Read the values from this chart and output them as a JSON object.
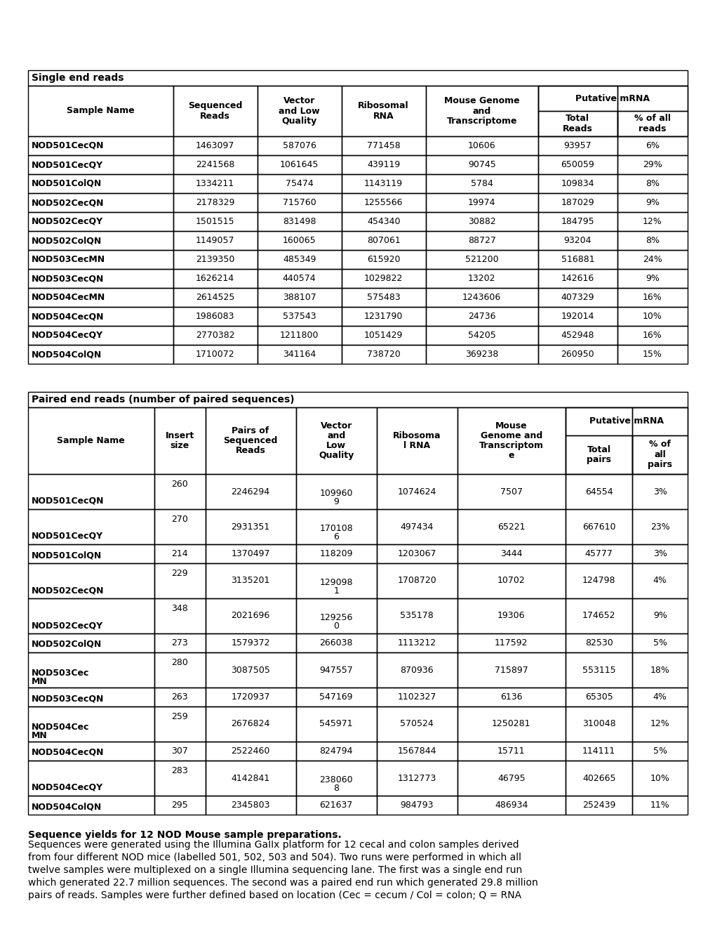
{
  "bg_color": "#ffffff",
  "text_color": "#000000",
  "border_color": "#000000",
  "table1_title": "Single end reads",
  "table1_data": [
    [
      "NOD501CecQN",
      "1463097",
      "587076",
      "771458",
      "10606",
      "93957",
      "6%"
    ],
    [
      "NOD501CecQY",
      "2241568",
      "1061645",
      "439119",
      "90745",
      "650059",
      "29%"
    ],
    [
      "NOD501ColQN",
      "1334211",
      "75474",
      "1143119",
      "5784",
      "109834",
      "8%"
    ],
    [
      "NOD502CecQN",
      "2178329",
      "715760",
      "1255566",
      "19974",
      "187029",
      "9%"
    ],
    [
      "NOD502CecQY",
      "1501515",
      "831498",
      "454340",
      "30882",
      "184795",
      "12%"
    ],
    [
      "NOD502ColQN",
      "1149057",
      "160065",
      "807061",
      "88727",
      "93204",
      "8%"
    ],
    [
      "NOD503CecMN",
      "2139350",
      "485349",
      "615920",
      "521200",
      "516881",
      "24%"
    ],
    [
      "NOD503CecQN",
      "1626214",
      "440574",
      "1029822",
      "13202",
      "142616",
      "9%"
    ],
    [
      "NOD504CecMN",
      "2614525",
      "388107",
      "575483",
      "1243606",
      "407329",
      "16%"
    ],
    [
      "NOD504CecQN",
      "1986083",
      "537543",
      "1231790",
      "24736",
      "192014",
      "10%"
    ],
    [
      "NOD504CecQY",
      "2770382",
      "1211800",
      "1051429",
      "54205",
      "452948",
      "16%"
    ],
    [
      "NOD504ColQN",
      "1710072",
      "341164",
      "738720",
      "369238",
      "260950",
      "15%"
    ]
  ],
  "table2_title": "Paired end reads (number of paired sequences)",
  "table2_data": [
    [
      "NOD501CecQN",
      "260",
      "2246294",
      "1099609",
      "1074624",
      "7507",
      "64554",
      "3%"
    ],
    [
      "NOD501CecQY",
      "270",
      "2931351",
      "1701086",
      "497434",
      "65221",
      "667610",
      "23%"
    ],
    [
      "NOD501ColQN",
      "214",
      "1370497",
      "118209",
      "1203067",
      "3444",
      "45777",
      "3%"
    ],
    [
      "NOD502CecQN",
      "229",
      "3135201",
      "1290981",
      "1708720",
      "10702",
      "124798",
      "4%"
    ],
    [
      "NOD502CecQY",
      "348",
      "2021696",
      "1292560",
      "535178",
      "19306",
      "174652",
      "9%"
    ],
    [
      "NOD502ColQN",
      "273",
      "1579372",
      "266038",
      "1113212",
      "117592",
      "82530",
      "5%"
    ],
    [
      "NOD503CecMN",
      "280",
      "3087505",
      "947557",
      "870936",
      "715897",
      "553115",
      "18%"
    ],
    [
      "NOD503CecQN",
      "263",
      "1720937",
      "547169",
      "1102327",
      "6136",
      "65305",
      "4%"
    ],
    [
      "NOD504CecMN",
      "259",
      "2676824",
      "545971",
      "570524",
      "1250281",
      "310048",
      "12%"
    ],
    [
      "NOD504CecQN",
      "307",
      "2522460",
      "824794",
      "1567844",
      "15711",
      "114111",
      "5%"
    ],
    [
      "NOD504CecQY",
      "283",
      "4142841",
      "2380608",
      "1312773",
      "46795",
      "402665",
      "10%"
    ],
    [
      "NOD504ColQN",
      "295",
      "2345803",
      "621637",
      "984793",
      "486934",
      "252439",
      "11%"
    ]
  ],
  "caption_bold": "Sequence yields for 12 NOD Mouse sample preparations.",
  "caption_lines": [
    "Sequences were generated using the Illumina GaIIx platform for 12 cecal and colon samples derived",
    "from four different NOD mice (labelled 501, 502, 503 and 504). Two runs were performed in which all",
    "twelve samples were multiplexed on a single Illumina sequencing lane. The first was a single end run",
    "which generated 22.7 million sequences. The second was a paired end run which generated 29.8 million",
    "pairs of reads. Samples were further defined based on location (Cec = cecum / Col = colon; Q = RNA"
  ],
  "t1_col_widths_raw": [
    155,
    90,
    90,
    90,
    120,
    85,
    75
  ],
  "t2_col_widths_raw": [
    128,
    52,
    92,
    82,
    82,
    110,
    68,
    56
  ],
  "t2_double_rows": [
    0,
    1,
    3,
    4,
    6,
    8,
    10
  ],
  "t2_vlow_splits": {
    "0": [
      "109960",
      "9"
    ],
    "1": [
      "170108",
      "6"
    ],
    "3": [
      "129098",
      "1"
    ],
    "4": [
      "129256",
      "0"
    ],
    "10": [
      "238060",
      "8"
    ]
  }
}
